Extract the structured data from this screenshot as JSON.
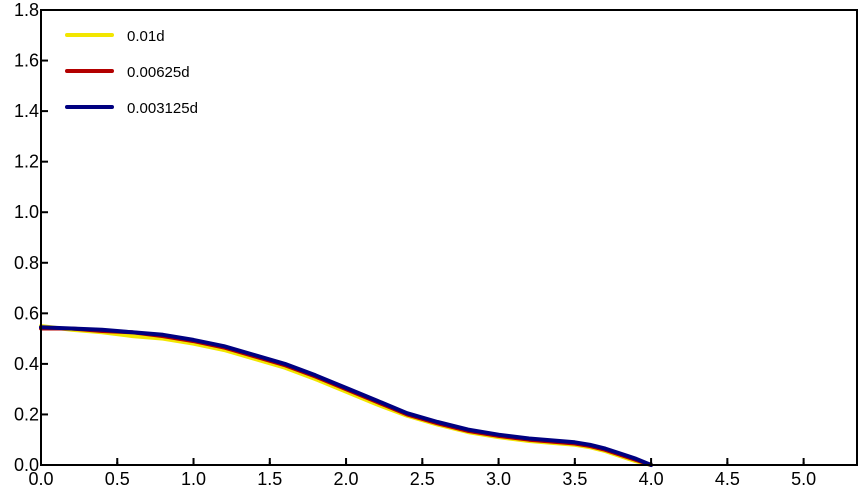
{
  "chart_data": {
    "type": "line",
    "title": "",
    "xlabel": "",
    "ylabel": "",
    "xlim": [
      0,
      5.35
    ],
    "ylim": [
      0,
      1.8
    ],
    "x_ticks": [
      "0.0",
      "0.5",
      "1.0",
      "1.5",
      "2.0",
      "2.5",
      "3.0",
      "3.5",
      "4.0",
      "4.5",
      "5.0"
    ],
    "y_ticks": [
      "0.0",
      "0.2",
      "0.4",
      "0.6",
      "0.8",
      "1.0",
      "1.2",
      "1.4",
      "1.6",
      "1.8"
    ],
    "grid": false,
    "legend_position": "top-left",
    "series": [
      {
        "name": "0.01d",
        "color": "#f2e600",
        "x": [
          0.0,
          0.2,
          0.4,
          0.6,
          0.8,
          1.0,
          1.2,
          1.4,
          1.6,
          1.8,
          2.0,
          2.2,
          2.4,
          2.6,
          2.8,
          3.0,
          3.2,
          3.4,
          3.5,
          3.6,
          3.7,
          3.8,
          3.9,
          4.0
        ],
        "y": [
          0.55,
          0.535,
          0.525,
          0.51,
          0.5,
          0.48,
          0.455,
          0.42,
          0.385,
          0.34,
          0.29,
          0.24,
          0.195,
          0.16,
          0.13,
          0.11,
          0.095,
          0.085,
          0.08,
          0.07,
          0.055,
          0.035,
          0.015,
          0.0
        ]
      },
      {
        "name": "0.00625d",
        "color": "#b30000",
        "x": [
          0.0,
          0.2,
          0.4,
          0.6,
          0.8,
          1.0,
          1.2,
          1.4,
          1.6,
          1.8,
          2.0,
          2.2,
          2.4,
          2.6,
          2.8,
          3.0,
          3.2,
          3.4,
          3.5,
          3.6,
          3.7,
          3.8,
          3.9,
          4.0
        ],
        "y": [
          0.54,
          0.54,
          0.53,
          0.525,
          0.51,
          0.49,
          0.465,
          0.43,
          0.395,
          0.35,
          0.3,
          0.25,
          0.2,
          0.165,
          0.135,
          0.115,
          0.1,
          0.09,
          0.085,
          0.075,
          0.06,
          0.04,
          0.02,
          0.0
        ]
      },
      {
        "name": "0.003125d",
        "color": "#000080",
        "x": [
          0.0,
          0.2,
          0.4,
          0.6,
          0.8,
          1.0,
          1.2,
          1.4,
          1.6,
          1.8,
          2.0,
          2.2,
          2.4,
          2.6,
          2.8,
          3.0,
          3.2,
          3.4,
          3.5,
          3.6,
          3.7,
          3.8,
          3.9,
          4.0
        ],
        "y": [
          0.545,
          0.54,
          0.535,
          0.525,
          0.515,
          0.495,
          0.47,
          0.435,
          0.4,
          0.355,
          0.305,
          0.255,
          0.205,
          0.17,
          0.14,
          0.12,
          0.105,
          0.095,
          0.09,
          0.08,
          0.065,
          0.045,
          0.025,
          0.0
        ]
      }
    ]
  }
}
